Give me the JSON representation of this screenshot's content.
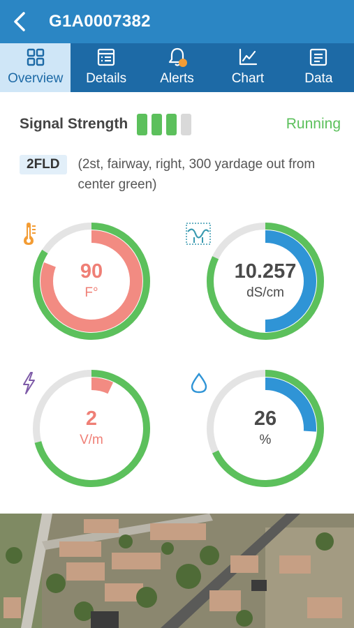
{
  "header": {
    "title": "G1A0007382",
    "back_icon": "chevron-left-icon"
  },
  "tabs": [
    {
      "label": "Overview",
      "icon": "grid-icon",
      "active": true
    },
    {
      "label": "Details",
      "icon": "details-list-icon",
      "active": false
    },
    {
      "label": "Alerts",
      "icon": "bell-icon",
      "active": false
    },
    {
      "label": "Chart",
      "icon": "line-chart-icon",
      "active": false
    },
    {
      "label": "Data",
      "icon": "data-list-icon",
      "active": false
    }
  ],
  "status": {
    "signal_label": "Signal Strength",
    "signal_level": 3,
    "signal_max": 4,
    "state": "Running"
  },
  "location": {
    "tag": "2FLD",
    "description": "(2st, fairway, right, 300 yardage out from center green)"
  },
  "gauges": [
    {
      "id": "temperature",
      "icon": "thermometer-icon",
      "value": "90",
      "unit": "F°",
      "outer_fraction": 0.84,
      "inner_fraction": 0.81,
      "inner_color": "#f28b82",
      "text_color": "#ef7f76"
    },
    {
      "id": "conductivity",
      "icon": "salinity-wave-icon",
      "value": "10.257",
      "unit": "dS/cm",
      "outer_fraction": 0.82,
      "inner_fraction": 0.5,
      "inner_color": "#2f94d6",
      "text_color": "#4a4a4a"
    },
    {
      "id": "voltage",
      "icon": "lightning-icon",
      "value": "2",
      "unit": "V/m",
      "outer_fraction": 0.71,
      "inner_fraction": 0.07,
      "inner_color": "#f28b82",
      "text_color": "#ef7f76"
    },
    {
      "id": "moisture",
      "icon": "water-drop-icon",
      "value": "26",
      "unit": "%",
      "outer_fraction": 0.68,
      "inner_fraction": 0.26,
      "inner_color": "#2f94d6",
      "text_color": "#4a4a4a"
    }
  ],
  "colors": {
    "primary": "#2b86c4",
    "primary_dark": "#1d6aa6",
    "tab_active_bg": "#cfe6f7",
    "ok_green": "#5cc05c",
    "track_gray": "#e4e4e4",
    "alert_dot": "#f39c34"
  }
}
